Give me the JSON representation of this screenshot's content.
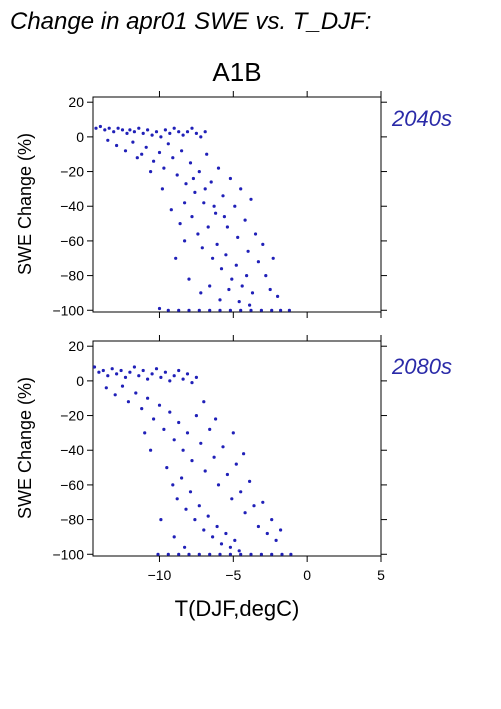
{
  "title": "Change in apr01 SWE vs. T_DJF:",
  "scenario": "A1B",
  "point_color": "#2020b8",
  "label_color": "#2a2aa8",
  "chart_data": [
    {
      "type": "scatter",
      "period_label": "2040s",
      "xlabel": "",
      "ylabel": "SWE Change (%)",
      "xlim": [
        -14.5,
        5
      ],
      "ylim": [
        -101,
        23
      ],
      "xticks": [
        -10,
        -5,
        0,
        5
      ],
      "xtick_labels": [
        "",
        "",
        "",
        ""
      ],
      "yticks": [
        20,
        0,
        -20,
        -40,
        -60,
        -80,
        -100
      ],
      "ytick_labels": [
        "20",
        "0",
        "−20",
        "−40",
        "−60",
        "−80",
        "−100"
      ],
      "points": [
        [
          -14.3,
          5
        ],
        [
          -14.0,
          6
        ],
        [
          -13.7,
          4
        ],
        [
          -13.4,
          5
        ],
        [
          -13.1,
          3
        ],
        [
          -12.8,
          5
        ],
        [
          -12.5,
          4
        ],
        [
          -12.2,
          2
        ],
        [
          -12.0,
          4
        ],
        [
          -11.7,
          3
        ],
        [
          -11.4,
          5
        ],
        [
          -11.1,
          2
        ],
        [
          -10.8,
          4
        ],
        [
          -10.5,
          1
        ],
        [
          -10.2,
          3
        ],
        [
          -9.9,
          0
        ],
        [
          -9.6,
          4
        ],
        [
          -9.3,
          2
        ],
        [
          -9.0,
          5
        ],
        [
          -8.7,
          3
        ],
        [
          -8.4,
          1
        ],
        [
          -8.1,
          3
        ],
        [
          -7.8,
          5
        ],
        [
          -7.5,
          2
        ],
        [
          -7.2,
          0
        ],
        [
          -6.9,
          3
        ],
        [
          -13.5,
          -2
        ],
        [
          -12.9,
          -5
        ],
        [
          -12.3,
          -8
        ],
        [
          -11.8,
          -3
        ],
        [
          -11.2,
          -10
        ],
        [
          -10.9,
          -6
        ],
        [
          -10.4,
          -14
        ],
        [
          -10.0,
          -9
        ],
        [
          -9.7,
          -18
        ],
        [
          -9.4,
          -4
        ],
        [
          -9.1,
          -12
        ],
        [
          -8.8,
          -22
        ],
        [
          -8.5,
          -8
        ],
        [
          -8.2,
          -27
        ],
        [
          -7.9,
          -15
        ],
        [
          -7.6,
          -32
        ],
        [
          -7.3,
          -20
        ],
        [
          -7.0,
          -38
        ],
        [
          -6.8,
          -10
        ],
        [
          -6.5,
          -26
        ],
        [
          -6.2,
          -44
        ],
        [
          -6.0,
          -18
        ],
        [
          -5.7,
          -34
        ],
        [
          -5.4,
          -52
        ],
        [
          -5.2,
          -24
        ],
        [
          -4.9,
          -40
        ],
        [
          -4.7,
          -58
        ],
        [
          -4.5,
          -30
        ],
        [
          -4.2,
          -48
        ],
        [
          -4.0,
          -66
        ],
        [
          -3.8,
          -36
        ],
        [
          -3.5,
          -56
        ],
        [
          -3.3,
          -72
        ],
        [
          -3.0,
          -62
        ],
        [
          -2.8,
          -80
        ],
        [
          -2.5,
          -88
        ],
        [
          -2.3,
          -70
        ],
        [
          -2.0,
          -92
        ],
        [
          -9.8,
          -30
        ],
        [
          -9.2,
          -42
        ],
        [
          -8.6,
          -50
        ],
        [
          -8.3,
          -60
        ],
        [
          -7.8,
          -46
        ],
        [
          -7.4,
          -56
        ],
        [
          -7.1,
          -64
        ],
        [
          -6.7,
          -52
        ],
        [
          -6.4,
          -70
        ],
        [
          -6.1,
          -62
        ],
        [
          -5.8,
          -76
        ],
        [
          -5.5,
          -68
        ],
        [
          -5.1,
          -82
        ],
        [
          -4.8,
          -74
        ],
        [
          -4.4,
          -86
        ],
        [
          -4.1,
          -80
        ],
        [
          -3.7,
          -90
        ],
        [
          -8.9,
          -70
        ],
        [
          -8.0,
          -82
        ],
        [
          -7.2,
          -90
        ],
        [
          -6.6,
          -86
        ],
        [
          -5.9,
          -94
        ],
        [
          -5.3,
          -88
        ],
        [
          -4.6,
          -95
        ],
        [
          -3.9,
          -97
        ],
        [
          -8.7,
          -100
        ],
        [
          -8.0,
          -100
        ],
        [
          -7.3,
          -100
        ],
        [
          -6.6,
          -100
        ],
        [
          -5.9,
          -100
        ],
        [
          -5.2,
          -100
        ],
        [
          -4.5,
          -100
        ],
        [
          -3.8,
          -100
        ],
        [
          -3.1,
          -100
        ],
        [
          -2.4,
          -100
        ],
        [
          -1.8,
          -100
        ],
        [
          -1.2,
          -100
        ],
        [
          -9.4,
          -100
        ],
        [
          -10.0,
          -99
        ],
        [
          -6.3,
          -40
        ],
        [
          -5.6,
          -46
        ],
        [
          -7.7,
          -24
        ],
        [
          -6.9,
          -30
        ],
        [
          -10.6,
          -20
        ],
        [
          -11.5,
          -12
        ],
        [
          -8.3,
          -38
        ]
      ]
    },
    {
      "type": "scatter",
      "period_label": "2080s",
      "xlabel": "T(DJF,degC)",
      "ylabel": "SWE Change (%)",
      "xlim": [
        -14.5,
        5
      ],
      "ylim": [
        -101,
        23
      ],
      "xticks": [
        -10,
        -5,
        0,
        5
      ],
      "xtick_labels": [
        "−10",
        "−5",
        "0",
        "5"
      ],
      "yticks": [
        20,
        0,
        -20,
        -40,
        -60,
        -80,
        -100
      ],
      "ytick_labels": [
        "20",
        "0",
        "−20",
        "−40",
        "−60",
        "−80",
        "−100"
      ],
      "points": [
        [
          -14.4,
          8
        ],
        [
          -14.1,
          5
        ],
        [
          -13.8,
          6
        ],
        [
          -13.5,
          3
        ],
        [
          -13.2,
          7
        ],
        [
          -12.9,
          4
        ],
        [
          -12.6,
          6
        ],
        [
          -12.3,
          2
        ],
        [
          -12.0,
          5
        ],
        [
          -11.7,
          8
        ],
        [
          -11.4,
          3
        ],
        [
          -11.1,
          6
        ],
        [
          -10.8,
          1
        ],
        [
          -10.5,
          4
        ],
        [
          -10.2,
          7
        ],
        [
          -9.9,
          2
        ],
        [
          -9.6,
          5
        ],
        [
          -9.3,
          0
        ],
        [
          -9.0,
          3
        ],
        [
          -8.7,
          6
        ],
        [
          -8.4,
          1
        ],
        [
          -8.1,
          4
        ],
        [
          -7.8,
          -1
        ],
        [
          -7.5,
          2
        ],
        [
          -13.6,
          -4
        ],
        [
          -13.0,
          -8
        ],
        [
          -12.5,
          -3
        ],
        [
          -12.1,
          -12
        ],
        [
          -11.6,
          -7
        ],
        [
          -11.2,
          -16
        ],
        [
          -10.8,
          -10
        ],
        [
          -10.4,
          -22
        ],
        [
          -10.0,
          -14
        ],
        [
          -9.7,
          -28
        ],
        [
          -9.3,
          -18
        ],
        [
          -9.0,
          -34
        ],
        [
          -8.7,
          -24
        ],
        [
          -8.4,
          -40
        ],
        [
          -8.1,
          -30
        ],
        [
          -7.8,
          -46
        ],
        [
          -7.5,
          -20
        ],
        [
          -7.2,
          -36
        ],
        [
          -6.9,
          -52
        ],
        [
          -6.6,
          -28
        ],
        [
          -6.3,
          -44
        ],
        [
          -6.0,
          -60
        ],
        [
          -5.7,
          -38
        ],
        [
          -5.4,
          -54
        ],
        [
          -5.1,
          -68
        ],
        [
          -4.8,
          -48
        ],
        [
          -4.5,
          -64
        ],
        [
          -4.2,
          -76
        ],
        [
          -3.9,
          -58
        ],
        [
          -3.6,
          -72
        ],
        [
          -3.3,
          -84
        ],
        [
          -3.0,
          -70
        ],
        [
          -2.7,
          -88
        ],
        [
          -2.4,
          -80
        ],
        [
          -2.1,
          -92
        ],
        [
          -1.8,
          -86
        ],
        [
          -9.5,
          -50
        ],
        [
          -9.1,
          -60
        ],
        [
          -8.8,
          -68
        ],
        [
          -8.5,
          -56
        ],
        [
          -8.2,
          -74
        ],
        [
          -7.9,
          -64
        ],
        [
          -7.6,
          -80
        ],
        [
          -7.3,
          -72
        ],
        [
          -7.0,
          -86
        ],
        [
          -6.7,
          -78
        ],
        [
          -6.4,
          -90
        ],
        [
          -6.1,
          -84
        ],
        [
          -5.8,
          -94
        ],
        [
          -5.5,
          -88
        ],
        [
          -5.2,
          -96
        ],
        [
          -4.9,
          -92
        ],
        [
          -4.6,
          -98
        ],
        [
          -9.9,
          -80
        ],
        [
          -9.0,
          -90
        ],
        [
          -8.3,
          -96
        ],
        [
          -9.4,
          -100
        ],
        [
          -8.7,
          -100
        ],
        [
          -8.0,
          -100
        ],
        [
          -7.3,
          -100
        ],
        [
          -6.6,
          -100
        ],
        [
          -5.9,
          -100
        ],
        [
          -5.2,
          -100
        ],
        [
          -4.5,
          -100
        ],
        [
          -3.8,
          -100
        ],
        [
          -3.1,
          -100
        ],
        [
          -2.4,
          -100
        ],
        [
          -1.7,
          -100
        ],
        [
          -1.1,
          -100
        ],
        [
          -10.1,
          -100
        ],
        [
          -11.0,
          -30
        ],
        [
          -10.6,
          -40
        ],
        [
          -7.0,
          -12
        ],
        [
          -6.2,
          -22
        ],
        [
          -5.0,
          -30
        ],
        [
          -4.3,
          -42
        ]
      ]
    }
  ]
}
